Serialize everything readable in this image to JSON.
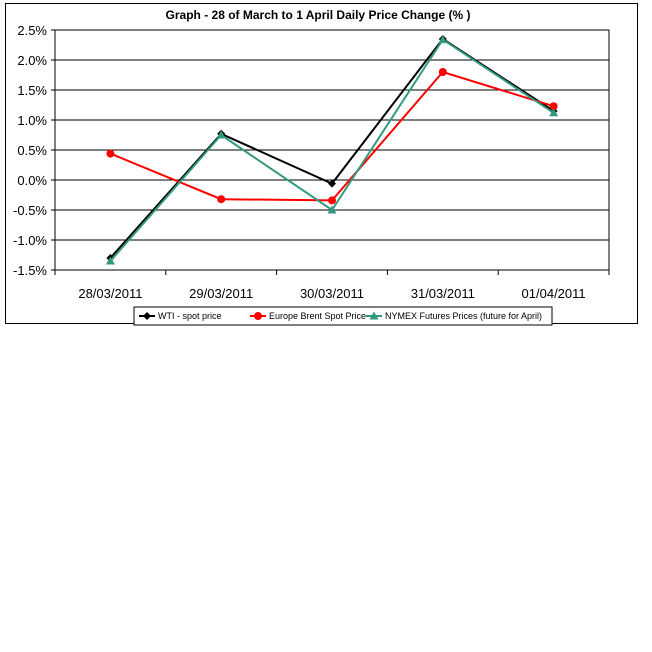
{
  "chart_data": {
    "type": "line",
    "title": "Graph -  28 of March to 1 April Daily Price Change (% )",
    "categories": [
      "28/03/2011",
      "29/03/2011",
      "30/03/2011",
      "31/03/2011",
      "01/04/2011"
    ],
    "ylim": [
      -1.5,
      2.5
    ],
    "yticks": [
      2.5,
      2.0,
      1.5,
      1.0,
      0.5,
      0.0,
      -0.5,
      -1.0,
      -1.5
    ],
    "ytick_labels": [
      "2.5%",
      "2.0%",
      "1.5%",
      "1.0%",
      "0.5%",
      "0.0%",
      "-0.5%",
      "-1.0%",
      "-1.5%"
    ],
    "grid": true,
    "legend_position": "bottom",
    "series": [
      {
        "name": "WTI - spot price",
        "values": [
          -1.3,
          0.77,
          -0.06,
          2.35,
          1.15
        ],
        "color": "#000000",
        "marker": "diamond"
      },
      {
        "name": "Europe Brent Spot Price",
        "values": [
          0.44,
          -0.32,
          -0.34,
          1.8,
          1.23
        ],
        "color": "#ff0000",
        "marker": "circle"
      },
      {
        "name": "NYMEX Futures Prices (future for  April)",
        "values": [
          -1.35,
          0.75,
          -0.5,
          2.34,
          1.12
        ],
        "color": "#339980",
        "marker": "triangle"
      }
    ]
  }
}
